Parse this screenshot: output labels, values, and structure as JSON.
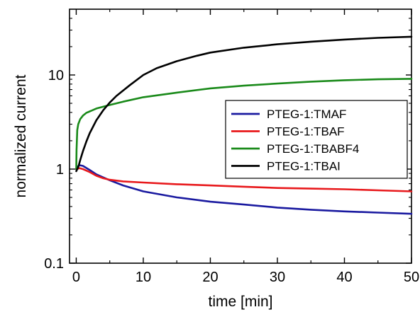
{
  "chart_data": {
    "type": "line",
    "xlabel": "time [min]",
    "ylabel": "normalized current",
    "xlim": [
      -1,
      50
    ],
    "ylim": [
      0.1,
      50
    ],
    "yscale": "log",
    "x_ticks": [
      0,
      10,
      20,
      30,
      40,
      50
    ],
    "x_tick_labels": [
      "0",
      "10",
      "20",
      "30",
      "40",
      "50"
    ],
    "y_ticks": [
      0.1,
      1,
      10
    ],
    "y_tick_labels": [
      "0.1",
      "1",
      "10"
    ],
    "legend_position": "middle-right",
    "grid": false,
    "series": [
      {
        "name": "PTEG-1:TMAF",
        "color": "#1a1aa0",
        "x": [
          0,
          0.2,
          0.5,
          1,
          2,
          3,
          5,
          7,
          10,
          15,
          20,
          25,
          30,
          35,
          40,
          45,
          50
        ],
        "y": [
          1.0,
          1.06,
          1.1,
          1.08,
          0.98,
          0.88,
          0.76,
          0.67,
          0.58,
          0.5,
          0.45,
          0.42,
          0.39,
          0.37,
          0.355,
          0.345,
          0.335
        ]
      },
      {
        "name": "PTEG-1:TBAF",
        "color": "#e8191c",
        "x": [
          0,
          0.5,
          1,
          2,
          3,
          4,
          5,
          7,
          10,
          15,
          20,
          25,
          30,
          35,
          40,
          45,
          50
        ],
        "y": [
          1.0,
          1.02,
          1.0,
          0.93,
          0.85,
          0.8,
          0.77,
          0.74,
          0.72,
          0.69,
          0.67,
          0.65,
          0.63,
          0.62,
          0.61,
          0.595,
          0.58
        ]
      },
      {
        "name": "PTEG-1:TBABF4",
        "color": "#1a8a1a",
        "x": [
          0,
          0.05,
          0.15,
          0.3,
          0.6,
          1,
          1.5,
          2,
          3,
          5,
          7,
          10,
          15,
          20,
          25,
          30,
          35,
          40,
          45,
          50
        ],
        "y": [
          1.0,
          1.6,
          2.6,
          3.0,
          3.4,
          3.7,
          3.95,
          4.1,
          4.4,
          4.8,
          5.2,
          5.8,
          6.5,
          7.2,
          7.7,
          8.1,
          8.5,
          8.8,
          9.0,
          9.1
        ]
      },
      {
        "name": "PTEG-1:TBAI",
        "color": "#000000",
        "x": [
          0,
          0.3,
          0.6,
          1,
          1.5,
          2,
          3,
          4,
          5,
          6,
          8,
          10,
          12,
          15,
          18,
          20,
          25,
          30,
          35,
          40,
          45,
          50
        ],
        "y": [
          0.95,
          1.05,
          1.25,
          1.55,
          1.95,
          2.4,
          3.3,
          4.2,
          5.1,
          6.0,
          7.8,
          10.0,
          11.8,
          14.0,
          16.0,
          17.3,
          19.5,
          21.2,
          22.6,
          23.8,
          24.8,
          25.5
        ]
      }
    ]
  }
}
